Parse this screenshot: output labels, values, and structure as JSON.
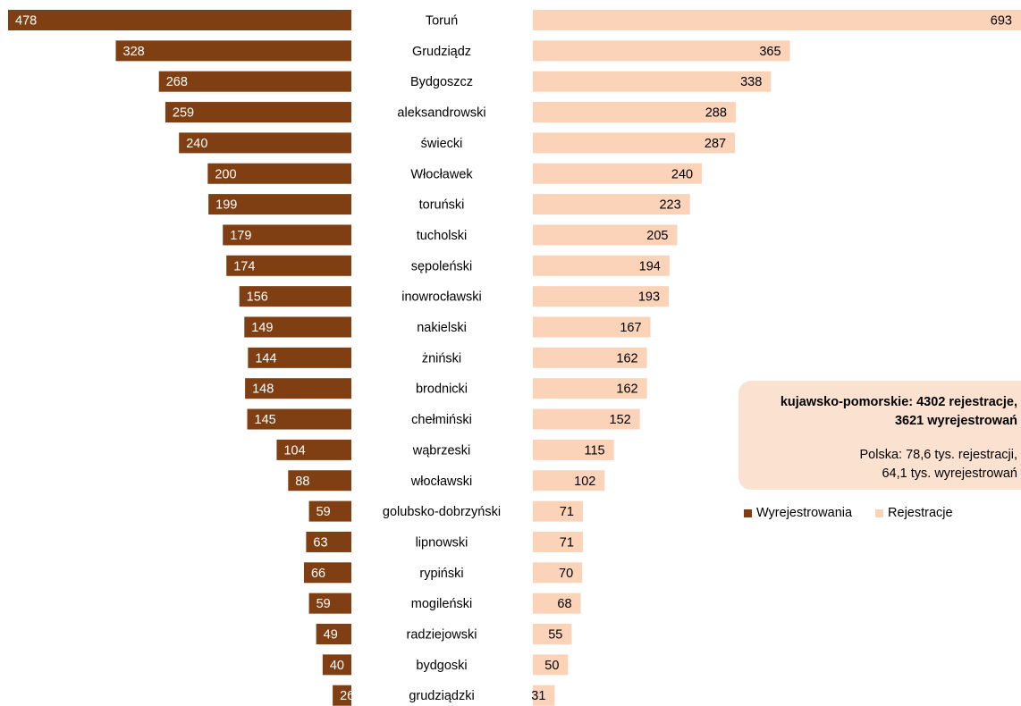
{
  "chart_data": {
    "type": "bar",
    "orientation": "horizontal-butterfly",
    "categories": [
      "Toruń",
      "Grudziądz",
      "Bydgoszcz",
      "aleksandrowski",
      "świecki",
      "Włocławek",
      "toruński",
      "tucholski",
      "sępoleński",
      "inowrocławski",
      "nakielski",
      "żniński",
      "brodnicki",
      "chełmiński",
      "wąbrzeski",
      "włocławski",
      "golubsko-dobrzyński",
      "lipnowski",
      "rypiński",
      "mogileński",
      "radziejowski",
      "bydgoski",
      "grudziądzki"
    ],
    "series": [
      {
        "name": "Wyrejestrowania",
        "color": "#7f3f13",
        "side": "left",
        "values": [
          478,
          328,
          268,
          259,
          240,
          200,
          199,
          179,
          174,
          156,
          149,
          144,
          148,
          145,
          104,
          88,
          59,
          63,
          66,
          59,
          49,
          40,
          26
        ]
      },
      {
        "name": "Rejestracje",
        "color": "#fbd3b9",
        "side": "right",
        "values": [
          693,
          365,
          338,
          288,
          287,
          240,
          223,
          205,
          194,
          193,
          167,
          162,
          162,
          152,
          115,
          102,
          71,
          71,
          70,
          68,
          55,
          50,
          31
        ]
      }
    ],
    "data_labels": true,
    "legend_position": "right"
  },
  "infobox": {
    "line1": "kujawsko-pomorskie:  4302 rejestracje,",
    "line2": "3621 wyrejestrowań",
    "line3": "Polska:  78,6 tys. rejestracji,",
    "line4": "64,1 tys. wyrejestrowań"
  },
  "legend": {
    "items": [
      {
        "label": "Wyrejestrowania",
        "color": "#7f3f13"
      },
      {
        "label": "Rejestracje",
        "color": "#fbd3b9"
      }
    ]
  }
}
